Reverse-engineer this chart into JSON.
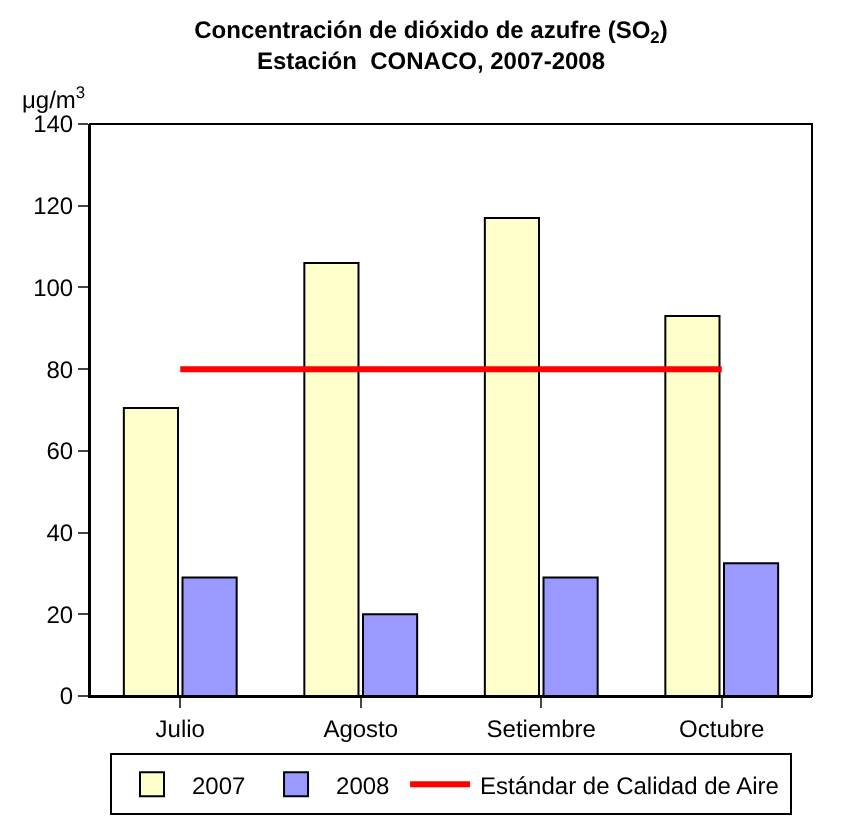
{
  "chart_data": {
    "type": "bar",
    "title": "Concentración de dióxido de azufre (SO$_{2}$)",
    "subtitle": "Estación  CONACO, 2007-2008",
    "ylabel": "μg/m$^{3}$",
    "categories": [
      "Julio",
      "Agosto",
      "Setiembre",
      "Octubre"
    ],
    "series": [
      {
        "name": "2007",
        "color": "#ffffcc",
        "values": [
          70.5,
          106,
          117,
          93
        ]
      },
      {
        "name": "2008",
        "color": "#9999ff",
        "values": [
          29,
          20,
          29,
          32.5
        ]
      }
    ],
    "ref_lines": [
      {
        "axis": "y",
        "value": 80,
        "label": "Estándar de Calidad de Aire",
        "color": "#ff0000"
      }
    ],
    "ylim": [
      0,
      140
    ],
    "yticks": [
      0,
      20,
      40,
      60,
      80,
      100,
      120,
      140
    ],
    "legend": "bottom"
  }
}
